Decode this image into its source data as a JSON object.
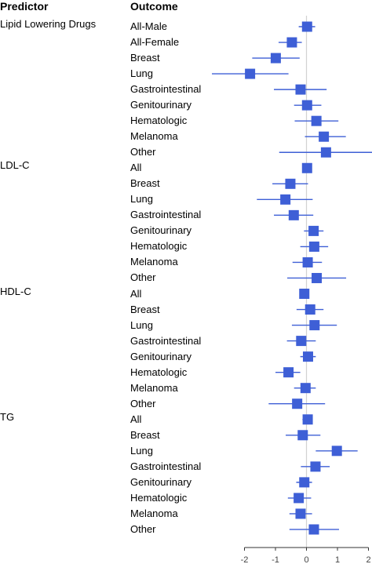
{
  "headers": {
    "predictor": "Predictor",
    "outcome": "Outcome"
  },
  "chart_data": {
    "type": "forest",
    "xlim": [
      -2,
      2
    ],
    "xticks": [
      -2,
      -1,
      0,
      1,
      2
    ],
    "xtick_labels": [
      "-2",
      "-1",
      "0",
      "1",
      "2"
    ],
    "reference_line": 0,
    "color": "#3e5fd6",
    "groups": [
      {
        "predictor": "Lipid Lowering Drugs",
        "rows": [
          {
            "outcome": "All-Male",
            "estimate": 0.02,
            "lower": -0.25,
            "upper": 0.28
          },
          {
            "outcome": "All-Female",
            "estimate": -0.47,
            "lower": -0.9,
            "upper": -0.15
          },
          {
            "outcome": "Breast",
            "estimate": -0.99,
            "lower": -1.75,
            "upper": -0.22
          },
          {
            "outcome": "Lung",
            "estimate": -1.82,
            "lower": -3.05,
            "upper": -0.58
          },
          {
            "outcome": "Gastrointestinal",
            "estimate": -0.19,
            "lower": -1.05,
            "upper": 0.65
          },
          {
            "outcome": "Genitourinary",
            "estimate": 0.02,
            "lower": -0.4,
            "upper": 0.48
          },
          {
            "outcome": "Hematologic",
            "estimate": 0.32,
            "lower": -0.38,
            "upper": 1.03
          },
          {
            "outcome": "Melanoma",
            "estimate": 0.56,
            "lower": -0.05,
            "upper": 1.27
          },
          {
            "outcome": "Other",
            "estimate": 0.63,
            "lower": -0.88,
            "upper": 2.2
          }
        ]
      },
      {
        "predictor": "LDL-C",
        "rows": [
          {
            "outcome": "All",
            "estimate": 0.02,
            "lower": -0.12,
            "upper": 0.17
          },
          {
            "outcome": "Breast",
            "estimate": -0.52,
            "lower": -1.1,
            "upper": 0.05
          },
          {
            "outcome": "Lung",
            "estimate": -0.68,
            "lower": -1.6,
            "upper": 0.2
          },
          {
            "outcome": "Gastrointestinal",
            "estimate": -0.41,
            "lower": -1.05,
            "upper": 0.22
          },
          {
            "outcome": "Genitourinary",
            "estimate": 0.23,
            "lower": -0.08,
            "upper": 0.55
          },
          {
            "outcome": "Hematologic",
            "estimate": 0.25,
            "lower": -0.2,
            "upper": 0.7
          },
          {
            "outcome": "Melanoma",
            "estimate": 0.04,
            "lower": -0.45,
            "upper": 0.5
          },
          {
            "outcome": "Other",
            "estimate": 0.33,
            "lower": -0.62,
            "upper": 1.28
          }
        ]
      },
      {
        "predictor": "HDL-C",
        "rows": [
          {
            "outcome": "All",
            "estimate": -0.07,
            "lower": -0.18,
            "upper": 0.04
          },
          {
            "outcome": "Breast",
            "estimate": 0.12,
            "lower": -0.32,
            "upper": 0.55
          },
          {
            "outcome": "Lung",
            "estimate": 0.26,
            "lower": -0.47,
            "upper": 0.98
          },
          {
            "outcome": "Gastrointestinal",
            "estimate": -0.17,
            "lower": -0.63,
            "upper": 0.3
          },
          {
            "outcome": "Genitourinary",
            "estimate": 0.05,
            "lower": -0.2,
            "upper": 0.3
          },
          {
            "outcome": "Hematologic",
            "estimate": -0.58,
            "lower": -1.0,
            "upper": -0.2
          },
          {
            "outcome": "Melanoma",
            "estimate": -0.03,
            "lower": -0.4,
            "upper": 0.3
          },
          {
            "outcome": "Other",
            "estimate": -0.3,
            "lower": -1.22,
            "upper": 0.6
          }
        ]
      },
      {
        "predictor": "TG",
        "rows": [
          {
            "outcome": "All",
            "estimate": 0.04,
            "lower": -0.13,
            "upper": 0.2
          },
          {
            "outcome": "Breast",
            "estimate": -0.12,
            "lower": -0.67,
            "upper": 0.45
          },
          {
            "outcome": "Lung",
            "estimate": 0.98,
            "lower": 0.3,
            "upper": 1.65
          },
          {
            "outcome": "Gastrointestinal",
            "estimate": 0.29,
            "lower": -0.18,
            "upper": 0.75
          },
          {
            "outcome": "Genitourinary",
            "estimate": -0.07,
            "lower": -0.33,
            "upper": 0.18
          },
          {
            "outcome": "Hematologic",
            "estimate": -0.25,
            "lower": -0.6,
            "upper": 0.15
          },
          {
            "outcome": "Melanoma",
            "estimate": -0.19,
            "lower": -0.55,
            "upper": 0.18
          },
          {
            "outcome": "Other",
            "estimate": 0.24,
            "lower": -0.55,
            "upper": 1.05
          }
        ]
      }
    ]
  }
}
